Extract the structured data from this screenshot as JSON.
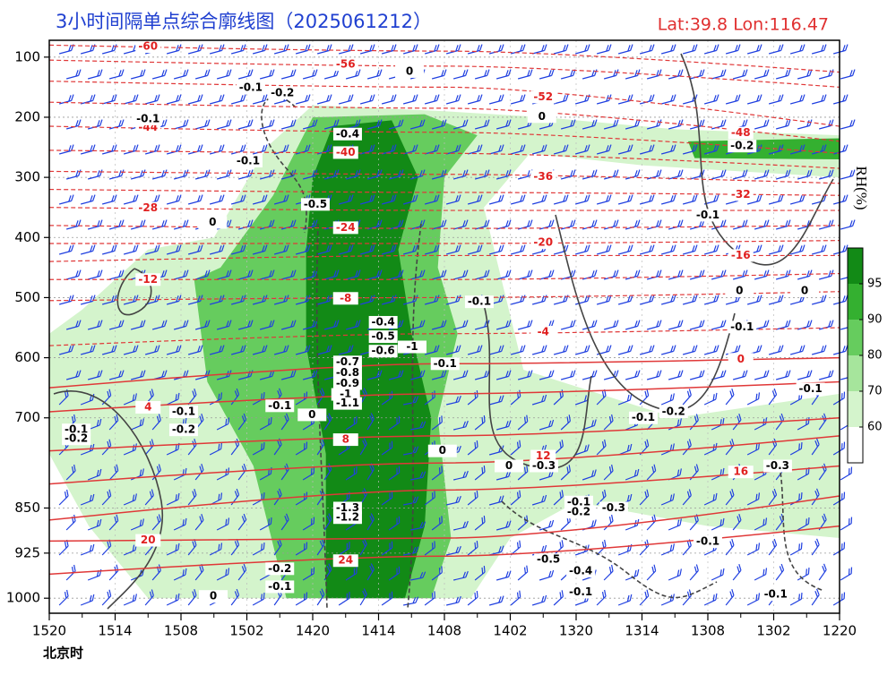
{
  "chart_data": {
    "type": "cross-section",
    "title": "3小时间隔单点综合廓线图（2025061212）",
    "location": "Lat:39.8  Lon:116.47",
    "x_label": "北京时",
    "categories": [
      "1520",
      "1514",
      "1508",
      "1502",
      "1420",
      "1414",
      "1408",
      "1402",
      "1320",
      "1314",
      "1308",
      "1302",
      "1220"
    ],
    "ylim": [
      72,
      1025
    ],
    "invert_y": true,
    "yticks": [
      100,
      200,
      300,
      400,
      500,
      600,
      700,
      850,
      925,
      1000
    ],
    "grid": true,
    "colorbar_label": "RH(%)",
    "rh_levels": [
      60,
      70,
      80,
      90,
      95
    ],
    "rh_colors": [
      "#ffffff",
      "#d4f4cc",
      "#a6e59c",
      "#66cc5e",
      "#34b030",
      "#128a16"
    ],
    "rh_regions": [
      {
        "level": 60,
        "points": [
          [
            0,
            560
          ],
          [
            0.5,
            520
          ],
          [
            1.5,
            420
          ],
          [
            2.5,
            400
          ],
          [
            3.3,
            250
          ],
          [
            4.0,
            180
          ],
          [
            6.0,
            190
          ],
          [
            7.5,
            200
          ],
          [
            9.5,
            220
          ],
          [
            12,
            230
          ],
          [
            12,
            300
          ],
          [
            9,
            280
          ],
          [
            7.3,
            260
          ],
          [
            6.6,
            350
          ],
          [
            7.2,
            620
          ],
          [
            9.5,
            700
          ],
          [
            12,
            660
          ],
          [
            12,
            900
          ],
          [
            10,
            880
          ],
          [
            8,
            840
          ],
          [
            7,
            900
          ],
          [
            6.4,
            1000
          ],
          [
            1.5,
            1000
          ],
          [
            0.6,
            880
          ],
          [
            0,
            760
          ]
        ]
      },
      {
        "level": 80,
        "points": [
          [
            2.2,
            470
          ],
          [
            2.6,
            450
          ],
          [
            3.4,
            330
          ],
          [
            4.0,
            200
          ],
          [
            5.7,
            195
          ],
          [
            6.5,
            230
          ],
          [
            6.0,
            300
          ],
          [
            5.9,
            450
          ],
          [
            6.2,
            560
          ],
          [
            5.9,
            700
          ],
          [
            6.1,
            900
          ],
          [
            5.8,
            1000
          ],
          [
            3.6,
            1000
          ],
          [
            3.1,
            780
          ],
          [
            2.4,
            640
          ]
        ]
      },
      {
        "level": 95,
        "points": [
          [
            4.3,
            215
          ],
          [
            5.2,
            205
          ],
          [
            5.6,
            300
          ],
          [
            5.3,
            420
          ],
          [
            5.5,
            560
          ],
          [
            5.8,
            700
          ],
          [
            5.7,
            880
          ],
          [
            5.4,
            1000
          ],
          [
            4.2,
            1000
          ],
          [
            4.2,
            760
          ],
          [
            3.9,
            580
          ],
          [
            3.9,
            420
          ],
          [
            4.0,
            300
          ]
        ]
      },
      {
        "level": 90,
        "points": [
          [
            9.7,
            240
          ],
          [
            12,
            235
          ],
          [
            12,
            270
          ],
          [
            9.8,
            268
          ]
        ]
      }
    ],
    "isotherm_x": [
      0,
      6,
      12
    ],
    "isotherms": [
      {
        "value": -60,
        "p": [
          80,
          90,
          125
        ]
      },
      {
        "value": -56,
        "p": [
          105,
          115,
          150
        ]
      },
      {
        "value": -52,
        "p": [
          140,
          150,
          215
        ]
      },
      {
        "value": -48,
        "p": [
          175,
          185,
          240
        ]
      },
      {
        "value": -44,
        "p": [
          215,
          225,
          260
        ]
      },
      {
        "value": -40,
        "p": [
          255,
          260,
          285
        ]
      },
      {
        "value": -36,
        "p": [
          290,
          295,
          310
        ]
      },
      {
        "value": -32,
        "p": [
          320,
          325,
          330
        ]
      },
      {
        "value": -28,
        "p": [
          350,
          355,
          355
        ]
      },
      {
        "value": -24,
        "p": [
          380,
          385,
          380
        ]
      },
      {
        "value": -20,
        "p": [
          410,
          410,
          405
        ]
      },
      {
        "value": -16,
        "p": [
          440,
          430,
          430
        ]
      },
      {
        "value": -12,
        "p": [
          470,
          470,
          460
        ]
      },
      {
        "value": -8,
        "p": [
          505,
          500,
          490
        ]
      },
      {
        "value": -4,
        "p": [
          580,
          560,
          550
        ]
      },
      {
        "value": 0,
        "p": [
          650,
          610,
          600
        ]
      },
      {
        "value": 4,
        "p": [
          690,
          660,
          640
        ]
      },
      {
        "value": 8,
        "p": [
          755,
          730,
          700
        ]
      },
      {
        "value": 12,
        "p": [
          810,
          775,
          730
        ]
      },
      {
        "value": 16,
        "p": [
          870,
          820,
          780
        ]
      },
      {
        "value": 20,
        "p": [
          905,
          900,
          830
        ]
      },
      {
        "value": 24,
        "p": [
          960,
          930,
          880
        ]
      }
    ],
    "omega_labels": [
      {
        "value": -0.1,
        "x": 3.06,
        "p": 151
      },
      {
        "value": -0.2,
        "x": 3.54,
        "p": 160
      },
      {
        "value": -0.1,
        "x": 1.5,
        "p": 203
      },
      {
        "value": -0.1,
        "x": 3.02,
        "p": 273
      },
      {
        "value": -0.5,
        "x": 4.04,
        "p": 345
      },
      {
        "value": -0.4,
        "x": 4.53,
        "p": 228
      },
      {
        "value": -0.1,
        "x": 6.53,
        "p": 507
      },
      {
        "value": -0.4,
        "x": 5.07,
        "p": 541
      },
      {
        "value": -0.5,
        "x": 5.07,
        "p": 565
      },
      {
        "value": -0.6,
        "x": 5.07,
        "p": 589
      },
      {
        "value": -1,
        "x": 5.51,
        "p": 582
      },
      {
        "value": -0.1,
        "x": 6.01,
        "p": 610
      },
      {
        "value": -0.7,
        "x": 4.53,
        "p": 607
      },
      {
        "value": -0.8,
        "x": 4.53,
        "p": 625
      },
      {
        "value": -0.9,
        "x": 4.53,
        "p": 643
      },
      {
        "value": -1,
        "x": 4.5,
        "p": 661
      },
      {
        "value": -1.1,
        "x": 4.53,
        "p": 676
      },
      {
        "value": -0.1,
        "x": 3.5,
        "p": 680
      },
      {
        "value": -0.1,
        "x": 2.04,
        "p": 690
      },
      {
        "value": -0.2,
        "x": 2.04,
        "p": 720
      },
      {
        "value": -0.1,
        "x": 9.02,
        "p": 700
      },
      {
        "value": -0.2,
        "x": 9.48,
        "p": 690
      },
      {
        "value": -0.3,
        "x": 7.51,
        "p": 780
      },
      {
        "value": -0.1,
        "x": 8.04,
        "p": 840
      },
      {
        "value": -0.2,
        "x": 8.04,
        "p": 857
      },
      {
        "value": -0.3,
        "x": 8.57,
        "p": 850
      },
      {
        "value": -1.3,
        "x": 4.53,
        "p": 850
      },
      {
        "value": -1.2,
        "x": 4.53,
        "p": 866
      },
      {
        "value": -0.1,
        "x": 10.0,
        "p": 906
      },
      {
        "value": -0.2,
        "x": 3.5,
        "p": 951
      },
      {
        "value": -0.1,
        "x": 3.5,
        "p": 981
      },
      {
        "value": -0.5,
        "x": 7.58,
        "p": 936
      },
      {
        "value": -0.4,
        "x": 8.07,
        "p": 955
      },
      {
        "value": -0.1,
        "x": 8.07,
        "p": 990
      },
      {
        "value": -0.2,
        "x": 10.52,
        "p": 248
      },
      {
        "value": -0.1,
        "x": 10.0,
        "p": 363
      },
      {
        "value": -0.1,
        "x": 10.52,
        "p": 549
      },
      {
        "value": -0.1,
        "x": 11.56,
        "p": 652
      },
      {
        "value": -0.3,
        "x": 11.06,
        "p": 780
      },
      {
        "value": -0.1,
        "x": 11.03,
        "p": 994
      },
      {
        "value": -0.1,
        "x": 0.41,
        "p": 720
      },
      {
        "value": -0.2,
        "x": 0.41,
        "p": 735
      },
      {
        "value": 0,
        "x": 5.47,
        "p": 124
      },
      {
        "value": 0,
        "x": 7.48,
        "p": 199
      },
      {
        "value": 0,
        "x": 2.48,
        "p": 375
      },
      {
        "value": 0,
        "x": 3.99,
        "p": 695
      },
      {
        "value": 0,
        "x": 5.97,
        "p": 755
      },
      {
        "value": 0,
        "x": 6.98,
        "p": 780
      },
      {
        "value": 0,
        "x": 10.48,
        "p": 489
      },
      {
        "value": 0,
        "x": 11.47,
        "p": 489
      },
      {
        "value": 0,
        "x": 2.49,
        "p": 997
      }
    ]
  }
}
